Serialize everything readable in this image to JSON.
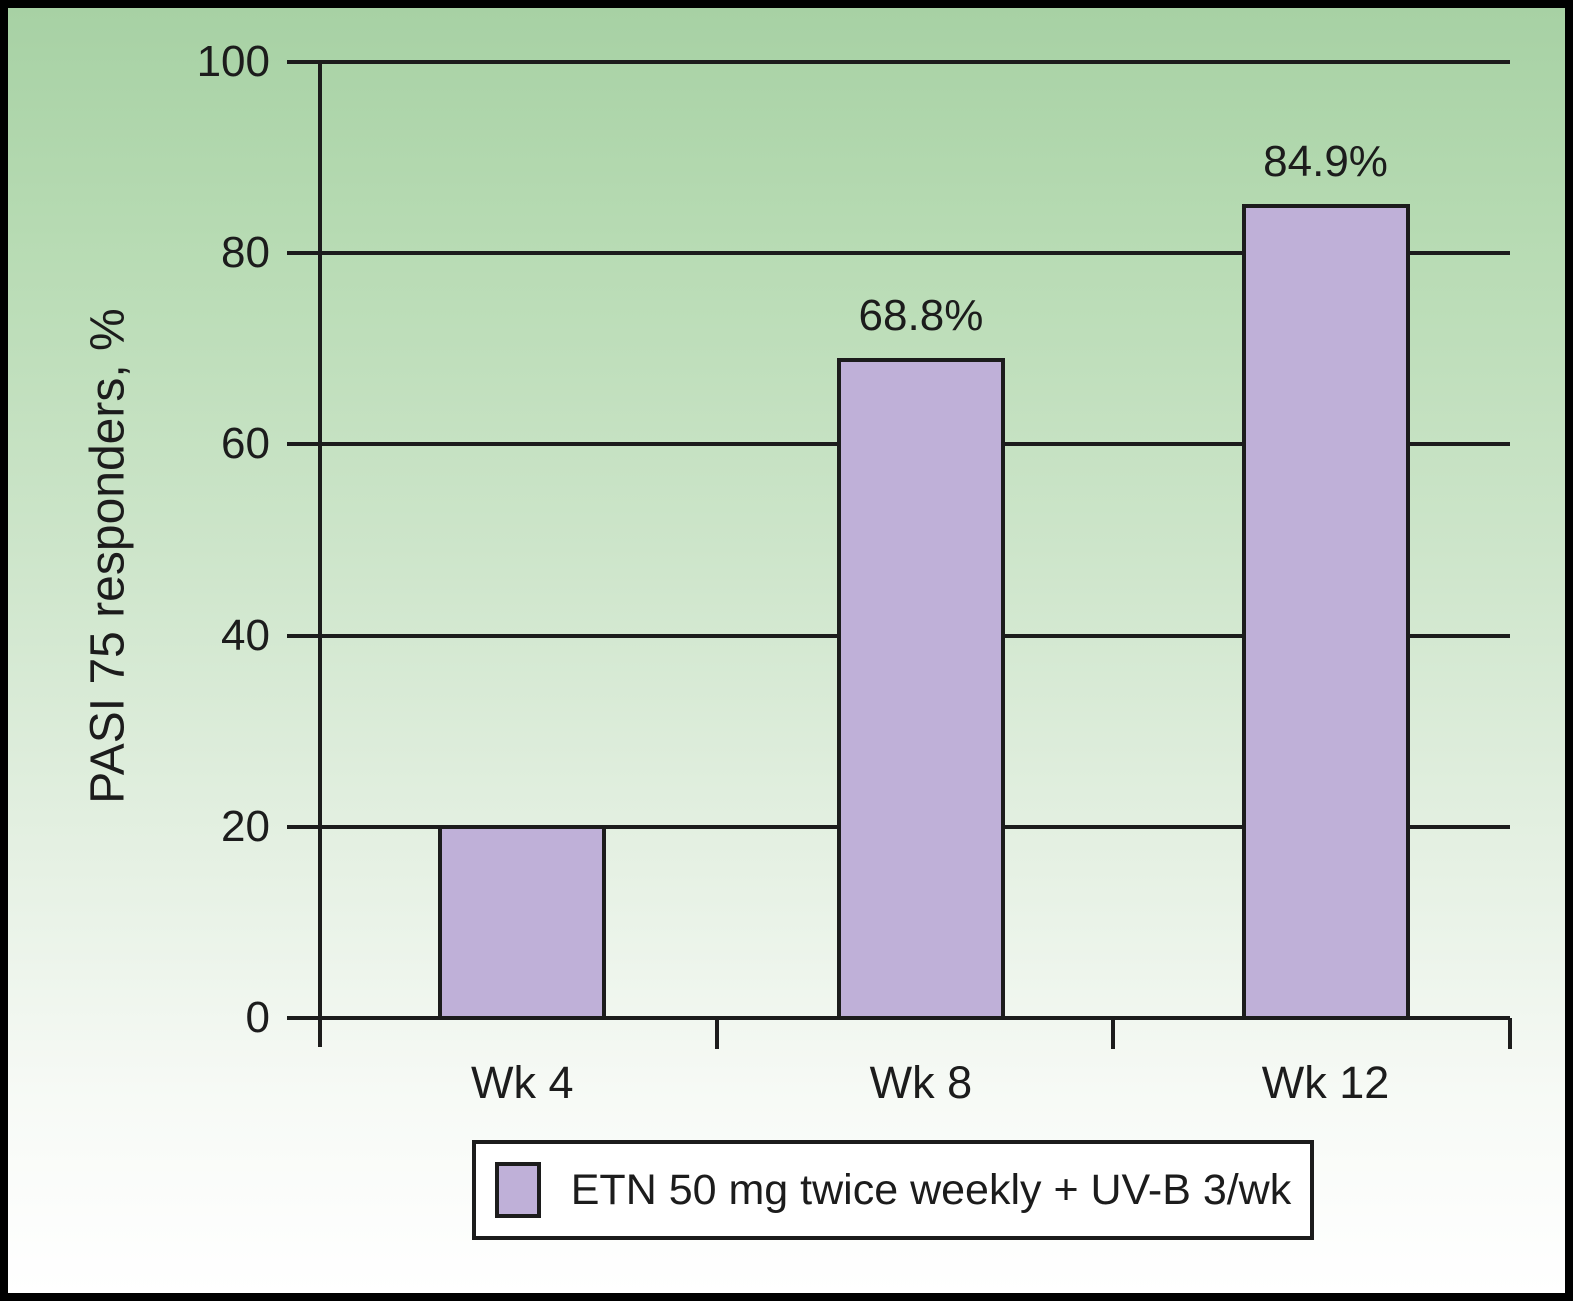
{
  "chart_data": {
    "type": "bar",
    "title": "",
    "xlabel": "",
    "ylabel": "PASI 75 responders, %",
    "categories": [
      "Wk 4",
      "Wk 8",
      "Wk 12"
    ],
    "values": [
      20,
      68.8,
      84.9
    ],
    "bar_labels": [
      "",
      "68.8%",
      "84.9%"
    ],
    "ylim": [
      0,
      100
    ],
    "yticks": [
      0,
      20,
      40,
      60,
      80,
      100
    ],
    "ytick_labels": [
      "0",
      "20",
      "40",
      "60",
      "80",
      "100"
    ],
    "grid": true,
    "legend_position": "bottom",
    "legend": [
      {
        "label": "ETN 50 mg twice weekly + UV-B 3/wk",
        "color": "#bfb0d8"
      }
    ],
    "colors": {
      "bar_fill": "#bfb0d8",
      "line": "#1c1c1c",
      "background_top": "#a7d1a4",
      "background_bottom": "#ffffff"
    }
  }
}
